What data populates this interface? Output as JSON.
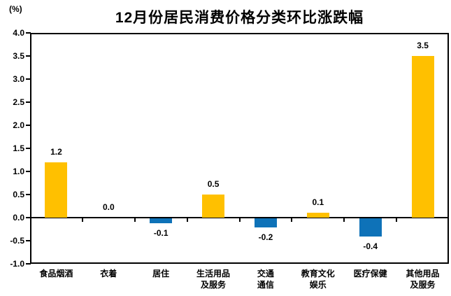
{
  "chart": {
    "title": "12月份居民消费价格分类环比涨跌幅",
    "unit_label": "(%)"
  },
  "chart_data": {
    "type": "bar",
    "title": "12月份居民消费价格分类环比涨跌幅",
    "unit": "%",
    "categories": [
      "食品烟酒",
      "衣着",
      "居住",
      "生活用品\n及服务",
      "交通\n通信",
      "教育文化\n娱乐",
      "医疗保健",
      "其他用品\n及服务"
    ],
    "values": [
      1.2,
      0.0,
      -0.1,
      0.5,
      -0.2,
      0.1,
      -0.4,
      3.5
    ],
    "value_labels": [
      "1.2",
      "0.0",
      "-0.1",
      "0.5",
      "-0.2",
      "0.1",
      "-0.4",
      "3.5"
    ],
    "y_ticks": [
      "4.0",
      "3.5",
      "3.0",
      "2.5",
      "2.0",
      "1.5",
      "1.0",
      "0.5",
      "0.0",
      "-0.5",
      "-1.0"
    ],
    "ylim": [
      -1.0,
      4.0
    ],
    "y_step": 0.5,
    "grid": false,
    "legend": "none",
    "xlabel": "",
    "ylabel": "%",
    "colors": {
      "positive_bar": "#FFC000",
      "negative_bar": "#0E72B8",
      "axis": "#000000",
      "text": "#000000",
      "background": "#FFFFFF"
    }
  }
}
